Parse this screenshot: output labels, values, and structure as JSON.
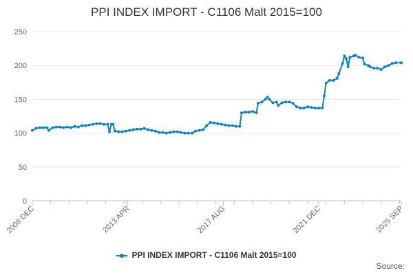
{
  "chart_data": {
    "type": "line",
    "title": "PPI INDEX IMPORT - C1106 Malt 2015=100",
    "xlabel": "",
    "ylabel": "",
    "ylim": [
      0,
      250
    ],
    "yticks": [
      0,
      50,
      100,
      150,
      200,
      250
    ],
    "xlim": [
      "2008-12",
      "2025-09"
    ],
    "x_tick_labels": [
      {
        "label": "2008 DEC",
        "date": "2008-12"
      },
      {
        "label": "2013 APR",
        "date": "2013-04"
      },
      {
        "label": "2017 AUG",
        "date": "2017-08"
      },
      {
        "label": "2021 DEC",
        "date": "2021-12"
      },
      {
        "label": "2025 SEP",
        "date": "2025-09"
      }
    ],
    "grid": {
      "horizontal": true,
      "vertical": false
    },
    "legend_position": "bottom",
    "series": [
      {
        "name": "PPI INDEX IMPORT - C1106 Malt 2015=100",
        "color": "#0a83c3",
        "points": [
          [
            "2008-12",
            104
          ],
          [
            "2009-02",
            107
          ],
          [
            "2009-04",
            108
          ],
          [
            "2009-06",
            108
          ],
          [
            "2009-08",
            108
          ],
          [
            "2009-09",
            104
          ],
          [
            "2009-11",
            108
          ],
          [
            "2010-01",
            109
          ],
          [
            "2010-03",
            109
          ],
          [
            "2010-05",
            108
          ],
          [
            "2010-07",
            109
          ],
          [
            "2010-09",
            108
          ],
          [
            "2010-11",
            110
          ],
          [
            "2011-01",
            109
          ],
          [
            "2011-03",
            111
          ],
          [
            "2011-05",
            111
          ],
          [
            "2011-07",
            112
          ],
          [
            "2011-09",
            113
          ],
          [
            "2011-11",
            114
          ],
          [
            "2012-01",
            114
          ],
          [
            "2012-03",
            113
          ],
          [
            "2012-05",
            113
          ],
          [
            "2012-06",
            102
          ],
          [
            "2012-07",
            113
          ],
          [
            "2012-08",
            113
          ],
          [
            "2012-09",
            103
          ],
          [
            "2012-11",
            102
          ],
          [
            "2013-01",
            102
          ],
          [
            "2013-03",
            103
          ],
          [
            "2013-05",
            104
          ],
          [
            "2013-07",
            105
          ],
          [
            "2013-09",
            106
          ],
          [
            "2013-11",
            106
          ],
          [
            "2014-01",
            107
          ],
          [
            "2014-03",
            105
          ],
          [
            "2014-05",
            104
          ],
          [
            "2014-07",
            103
          ],
          [
            "2014-09",
            101
          ],
          [
            "2014-11",
            101
          ],
          [
            "2015-01",
            100
          ],
          [
            "2015-03",
            101
          ],
          [
            "2015-05",
            102
          ],
          [
            "2015-07",
            102
          ],
          [
            "2015-09",
            101
          ],
          [
            "2015-11",
            100
          ],
          [
            "2016-01",
            100
          ],
          [
            "2016-03",
            100
          ],
          [
            "2016-05",
            103
          ],
          [
            "2016-07",
            104
          ],
          [
            "2016-09",
            105
          ],
          [
            "2016-11",
            111
          ],
          [
            "2017-01",
            116
          ],
          [
            "2017-03",
            115
          ],
          [
            "2017-05",
            114
          ],
          [
            "2017-07",
            113
          ],
          [
            "2017-09",
            112
          ],
          [
            "2017-11",
            111
          ],
          [
            "2018-01",
            111
          ],
          [
            "2018-03",
            110
          ],
          [
            "2018-05",
            110
          ],
          [
            "2018-06",
            130
          ],
          [
            "2018-08",
            131
          ],
          [
            "2018-10",
            131
          ],
          [
            "2018-12",
            132
          ],
          [
            "2019-02",
            130
          ],
          [
            "2019-03",
            144
          ],
          [
            "2019-05",
            146
          ],
          [
            "2019-07",
            150
          ],
          [
            "2019-08",
            153
          ],
          [
            "2019-09",
            150
          ],
          [
            "2019-11",
            145
          ],
          [
            "2020-01",
            146
          ],
          [
            "2020-02",
            141
          ],
          [
            "2020-04",
            145
          ],
          [
            "2020-06",
            146
          ],
          [
            "2020-08",
            146
          ],
          [
            "2020-10",
            144
          ],
          [
            "2020-12",
            139
          ],
          [
            "2021-02",
            137
          ],
          [
            "2021-04",
            137
          ],
          [
            "2021-06",
            139
          ],
          [
            "2021-08",
            138
          ],
          [
            "2021-10",
            137
          ],
          [
            "2021-12",
            137
          ],
          [
            "2022-02",
            137
          ],
          [
            "2022-03",
            155
          ],
          [
            "2022-04",
            174
          ],
          [
            "2022-06",
            178
          ],
          [
            "2022-08",
            178
          ],
          [
            "2022-10",
            181
          ],
          [
            "2022-11",
            188
          ],
          [
            "2023-01",
            203
          ],
          [
            "2023-02",
            214
          ],
          [
            "2023-03",
            210
          ],
          [
            "2023-04",
            198
          ],
          [
            "2023-05",
            212
          ],
          [
            "2023-07",
            214
          ],
          [
            "2023-08",
            215
          ],
          [
            "2023-10",
            212
          ],
          [
            "2023-12",
            211
          ],
          [
            "2024-01",
            202
          ],
          [
            "2024-03",
            200
          ],
          [
            "2024-04",
            198
          ],
          [
            "2024-06",
            196
          ],
          [
            "2024-08",
            196
          ],
          [
            "2024-10",
            194
          ],
          [
            "2024-12",
            198
          ],
          [
            "2025-02",
            200
          ],
          [
            "2025-04",
            203
          ],
          [
            "2025-06",
            204
          ],
          [
            "2025-09",
            204
          ]
        ]
      }
    ]
  },
  "legend_label": "PPI INDEX IMPORT - C1106 Malt 2015=100",
  "source_label": "Source:"
}
